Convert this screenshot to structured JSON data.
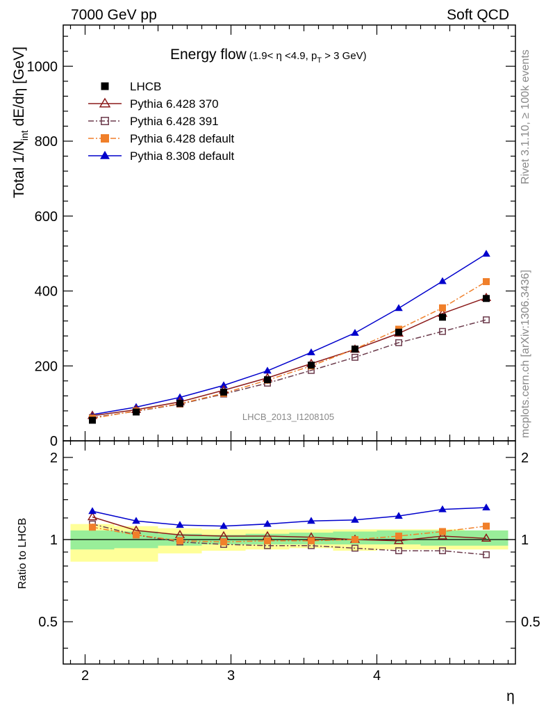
{
  "header": {
    "left": "7000 GeV pp",
    "right": "Soft QCD"
  },
  "side_text": {
    "rivet": "Rivet 3.1.10, ≥ 100k events",
    "mcplots": "mcplots.cern.ch [arXiv:1306.3436]"
  },
  "watermark": "LHCB_2013_I1208105",
  "chart_data": [
    {
      "type": "line",
      "title": "Energy flow",
      "subtitle_parts": [
        "(1.9< ",
        "η",
        " <4.9, p",
        "T",
        " > 3 GeV)"
      ],
      "ylabel_parts": [
        "Total 1/N",
        "int",
        " dE/dη [GeV]"
      ],
      "xlabel": "η",
      "xlim": [
        1.85,
        4.95
      ],
      "ylim": [
        0,
        1110
      ],
      "x_ticks": [
        2,
        3,
        4
      ],
      "x_tick_labels": [
        "2",
        "3",
        "4"
      ],
      "y_ticks": [
        0,
        200,
        400,
        600,
        800,
        1000
      ],
      "y_tick_labels": [
        "0",
        "200",
        "400",
        "600",
        "800",
        "1000"
      ],
      "x": [
        2.05,
        2.35,
        2.65,
        2.95,
        3.25,
        3.55,
        3.85,
        4.15,
        4.45,
        4.75
      ],
      "series": [
        {
          "name": "LHCB",
          "color": "#000000",
          "marker": "square-filled",
          "line": "none",
          "values": [
            55,
            77,
            100,
            130,
            163,
            202,
            245,
            290,
            330,
            380
          ]
        },
        {
          "name": "Pythia 6.428 370",
          "color": "#8b1a1a",
          "marker": "triangle-open",
          "line": "solid",
          "values": [
            67,
            83,
            104,
            135,
            168,
            206,
            244,
            287,
            340,
            382
          ]
        },
        {
          "name": "Pythia 6.428 391",
          "color": "#6b3a4b",
          "marker": "square-open",
          "line": "dashdot",
          "values": [
            62,
            79,
            98,
            125,
            154,
            188,
            223,
            262,
            292,
            323
          ]
        },
        {
          "name": "Pythia 6.428 default",
          "color": "#f07f2a",
          "marker": "square-filled",
          "line": "dashdot",
          "values": [
            60,
            80,
            99,
            127,
            162,
            200,
            245,
            298,
            355,
            425
          ]
        },
        {
          "name": "Pythia 8.308 default",
          "color": "#0000cc",
          "marker": "triangle-filled",
          "line": "solid",
          "values": [
            70,
            90,
            116,
            148,
            187,
            236,
            288,
            354,
            426,
            499
          ]
        }
      ],
      "legend_position": "top-left"
    },
    {
      "type": "line",
      "ylabel": "Ratio to LHCB",
      "xlabel": "η",
      "xlim": [
        1.85,
        4.95
      ],
      "ylim": [
        0.35,
        2.3
      ],
      "y_ticks": [
        0.5,
        1,
        2
      ],
      "y_tick_labels": [
        "0.5",
        "1",
        "2"
      ],
      "x_ticks": [
        2,
        3,
        4
      ],
      "x_tick_labels": [
        "2",
        "3",
        "4"
      ],
      "bins": [
        [
          1.9,
          2.2
        ],
        [
          2.2,
          2.5
        ],
        [
          2.5,
          2.8
        ],
        [
          2.8,
          3.1
        ],
        [
          3.1,
          3.4
        ],
        [
          3.4,
          3.7
        ],
        [
          3.7,
          4.0
        ],
        [
          4.0,
          4.3
        ],
        [
          4.3,
          4.6
        ],
        [
          4.6,
          4.9
        ]
      ],
      "band_stat": [
        [
          0.92,
          1.08
        ],
        [
          0.93,
          1.07
        ],
        [
          0.95,
          1.05
        ],
        [
          0.96,
          1.04
        ],
        [
          0.96,
          1.05
        ],
        [
          0.96,
          1.06
        ],
        [
          0.96,
          1.07
        ],
        [
          0.96,
          1.08
        ],
        [
          0.95,
          1.08
        ],
        [
          0.95,
          1.08
        ]
      ],
      "band_total": [
        [
          0.83,
          1.14
        ],
        [
          0.83,
          1.12
        ],
        [
          0.89,
          1.1
        ],
        [
          0.91,
          1.09
        ],
        [
          0.92,
          1.09
        ],
        [
          0.93,
          1.09
        ],
        [
          0.91,
          1.09
        ],
        [
          0.92,
          1.09
        ],
        [
          0.92,
          1.09
        ],
        [
          0.92,
          1.08
        ]
      ],
      "band_colors": {
        "stat": "#99ee99",
        "total": "#ffff99"
      },
      "series": [
        {
          "name": "Pythia 6.428 370",
          "color": "#8b1a1a",
          "marker": "triangle-open",
          "line": "solid",
          "values": [
            1.21,
            1.08,
            1.04,
            1.03,
            1.03,
            1.02,
            1.0,
            0.99,
            1.03,
            1.01
          ]
        },
        {
          "name": "Pythia 6.428 391",
          "color": "#6b3a4b",
          "marker": "square-open",
          "line": "dashdot",
          "values": [
            1.14,
            1.04,
            0.98,
            0.96,
            0.95,
            0.95,
            0.93,
            0.91,
            0.91,
            0.88
          ]
        },
        {
          "name": "Pythia 6.428 default",
          "color": "#f07f2a",
          "marker": "square-filled",
          "line": "dashdot",
          "values": [
            1.11,
            1.04,
            0.99,
            0.98,
            0.99,
            0.99,
            1.0,
            1.03,
            1.07,
            1.12
          ]
        },
        {
          "name": "Pythia 8.308 default",
          "color": "#0000cc",
          "marker": "triangle-filled",
          "line": "solid",
          "values": [
            1.27,
            1.17,
            1.13,
            1.12,
            1.14,
            1.17,
            1.18,
            1.22,
            1.29,
            1.31
          ]
        }
      ]
    }
  ]
}
